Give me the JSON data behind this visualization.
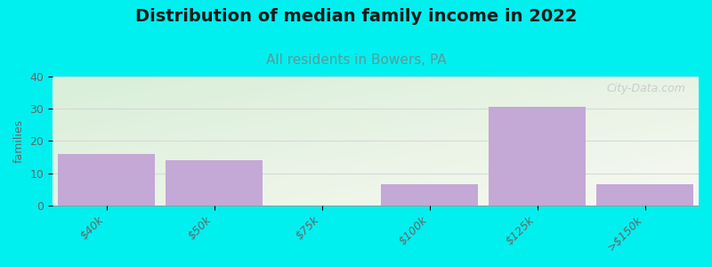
{
  "title": "Distribution of median family income in 2022",
  "subtitle": "All residents in Bowers, PA",
  "categories": [
    "$40k",
    "$50k",
    "$75k",
    "$100k",
    "$125k",
    ">$150k"
  ],
  "values": [
    16,
    14,
    0,
    6.5,
    30.5,
    6.5
  ],
  "bar_color": "#c4a8d6",
  "ylim": [
    0,
    40
  ],
  "yticks": [
    0,
    10,
    20,
    30,
    40
  ],
  "ylabel": "families",
  "background_color": "#00f0f0",
  "plot_bg_left_top": "#d8efd8",
  "plot_bg_right_bottom": "#f8f8f2",
  "title_fontsize": 14,
  "subtitle_fontsize": 11,
  "subtitle_color": "#5a9a9a",
  "watermark_text": "City-Data.com",
  "watermark_color": "#c8c8c8",
  "tick_color": "#666666",
  "grid_color": "#d8d8d8"
}
